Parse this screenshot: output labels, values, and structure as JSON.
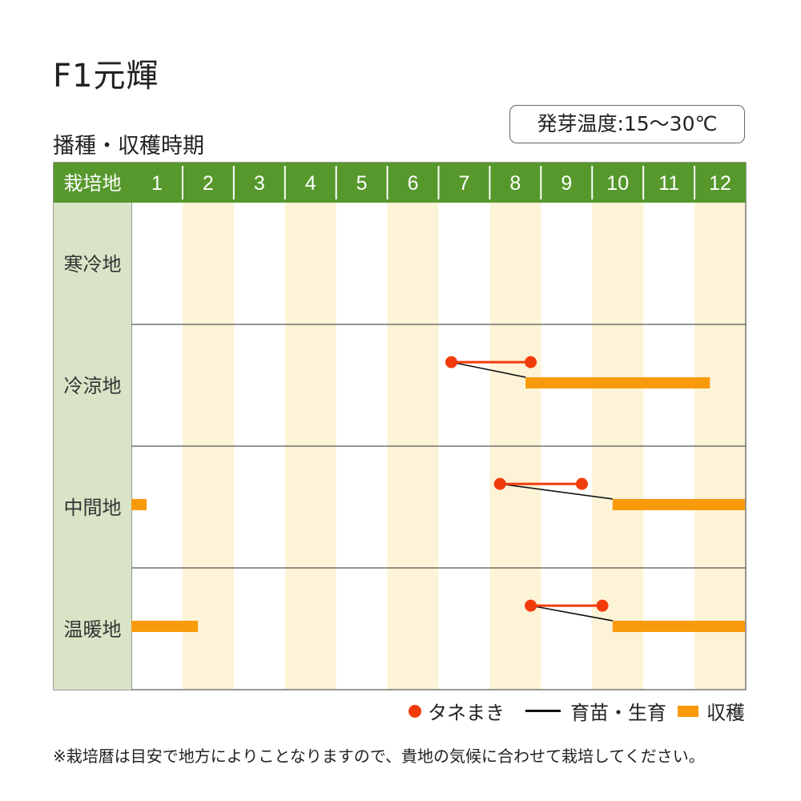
{
  "title": "F1元輝",
  "subtitle": "播種・収穫時期",
  "germination_temp": "発芽温度:15〜30℃",
  "legend": {
    "sowing": "タネまき",
    "growing": "育苗・生育",
    "harvest": "収穫"
  },
  "footnote": "※栽培暦は目安で地方によりことなりますので、貴地の気候に合わせて栽培してください。",
  "colors": {
    "header_green": "#56982c",
    "region_bg": "#d9e4c6",
    "stripe_cream": "#fdf3d6",
    "sowing_red": "#f23b0c",
    "harvest_orange": "#f99a0b"
  },
  "chart_data": {
    "type": "table",
    "header_label": "栽培地",
    "months": [
      "1",
      "2",
      "3",
      "4",
      "5",
      "6",
      "7",
      "8",
      "9",
      "10",
      "11",
      "12"
    ],
    "rows": [
      {
        "region": "寒冷地",
        "sowing": null,
        "harvest": []
      },
      {
        "region": "冷涼地",
        "sowing": [
          7.25,
          8.8
        ],
        "harvest": [
          [
            8.7,
            12.3
          ]
        ]
      },
      {
        "region": "中間地",
        "sowing": [
          8.2,
          9.8
        ],
        "harvest": [
          [
            1.0,
            1.3
          ],
          [
            10.4,
            13.0
          ]
        ]
      },
      {
        "region": "温暖地",
        "sowing": [
          8.8,
          10.2
        ],
        "harvest": [
          [
            1.0,
            2.3
          ],
          [
            10.4,
            13.0
          ]
        ]
      }
    ]
  }
}
